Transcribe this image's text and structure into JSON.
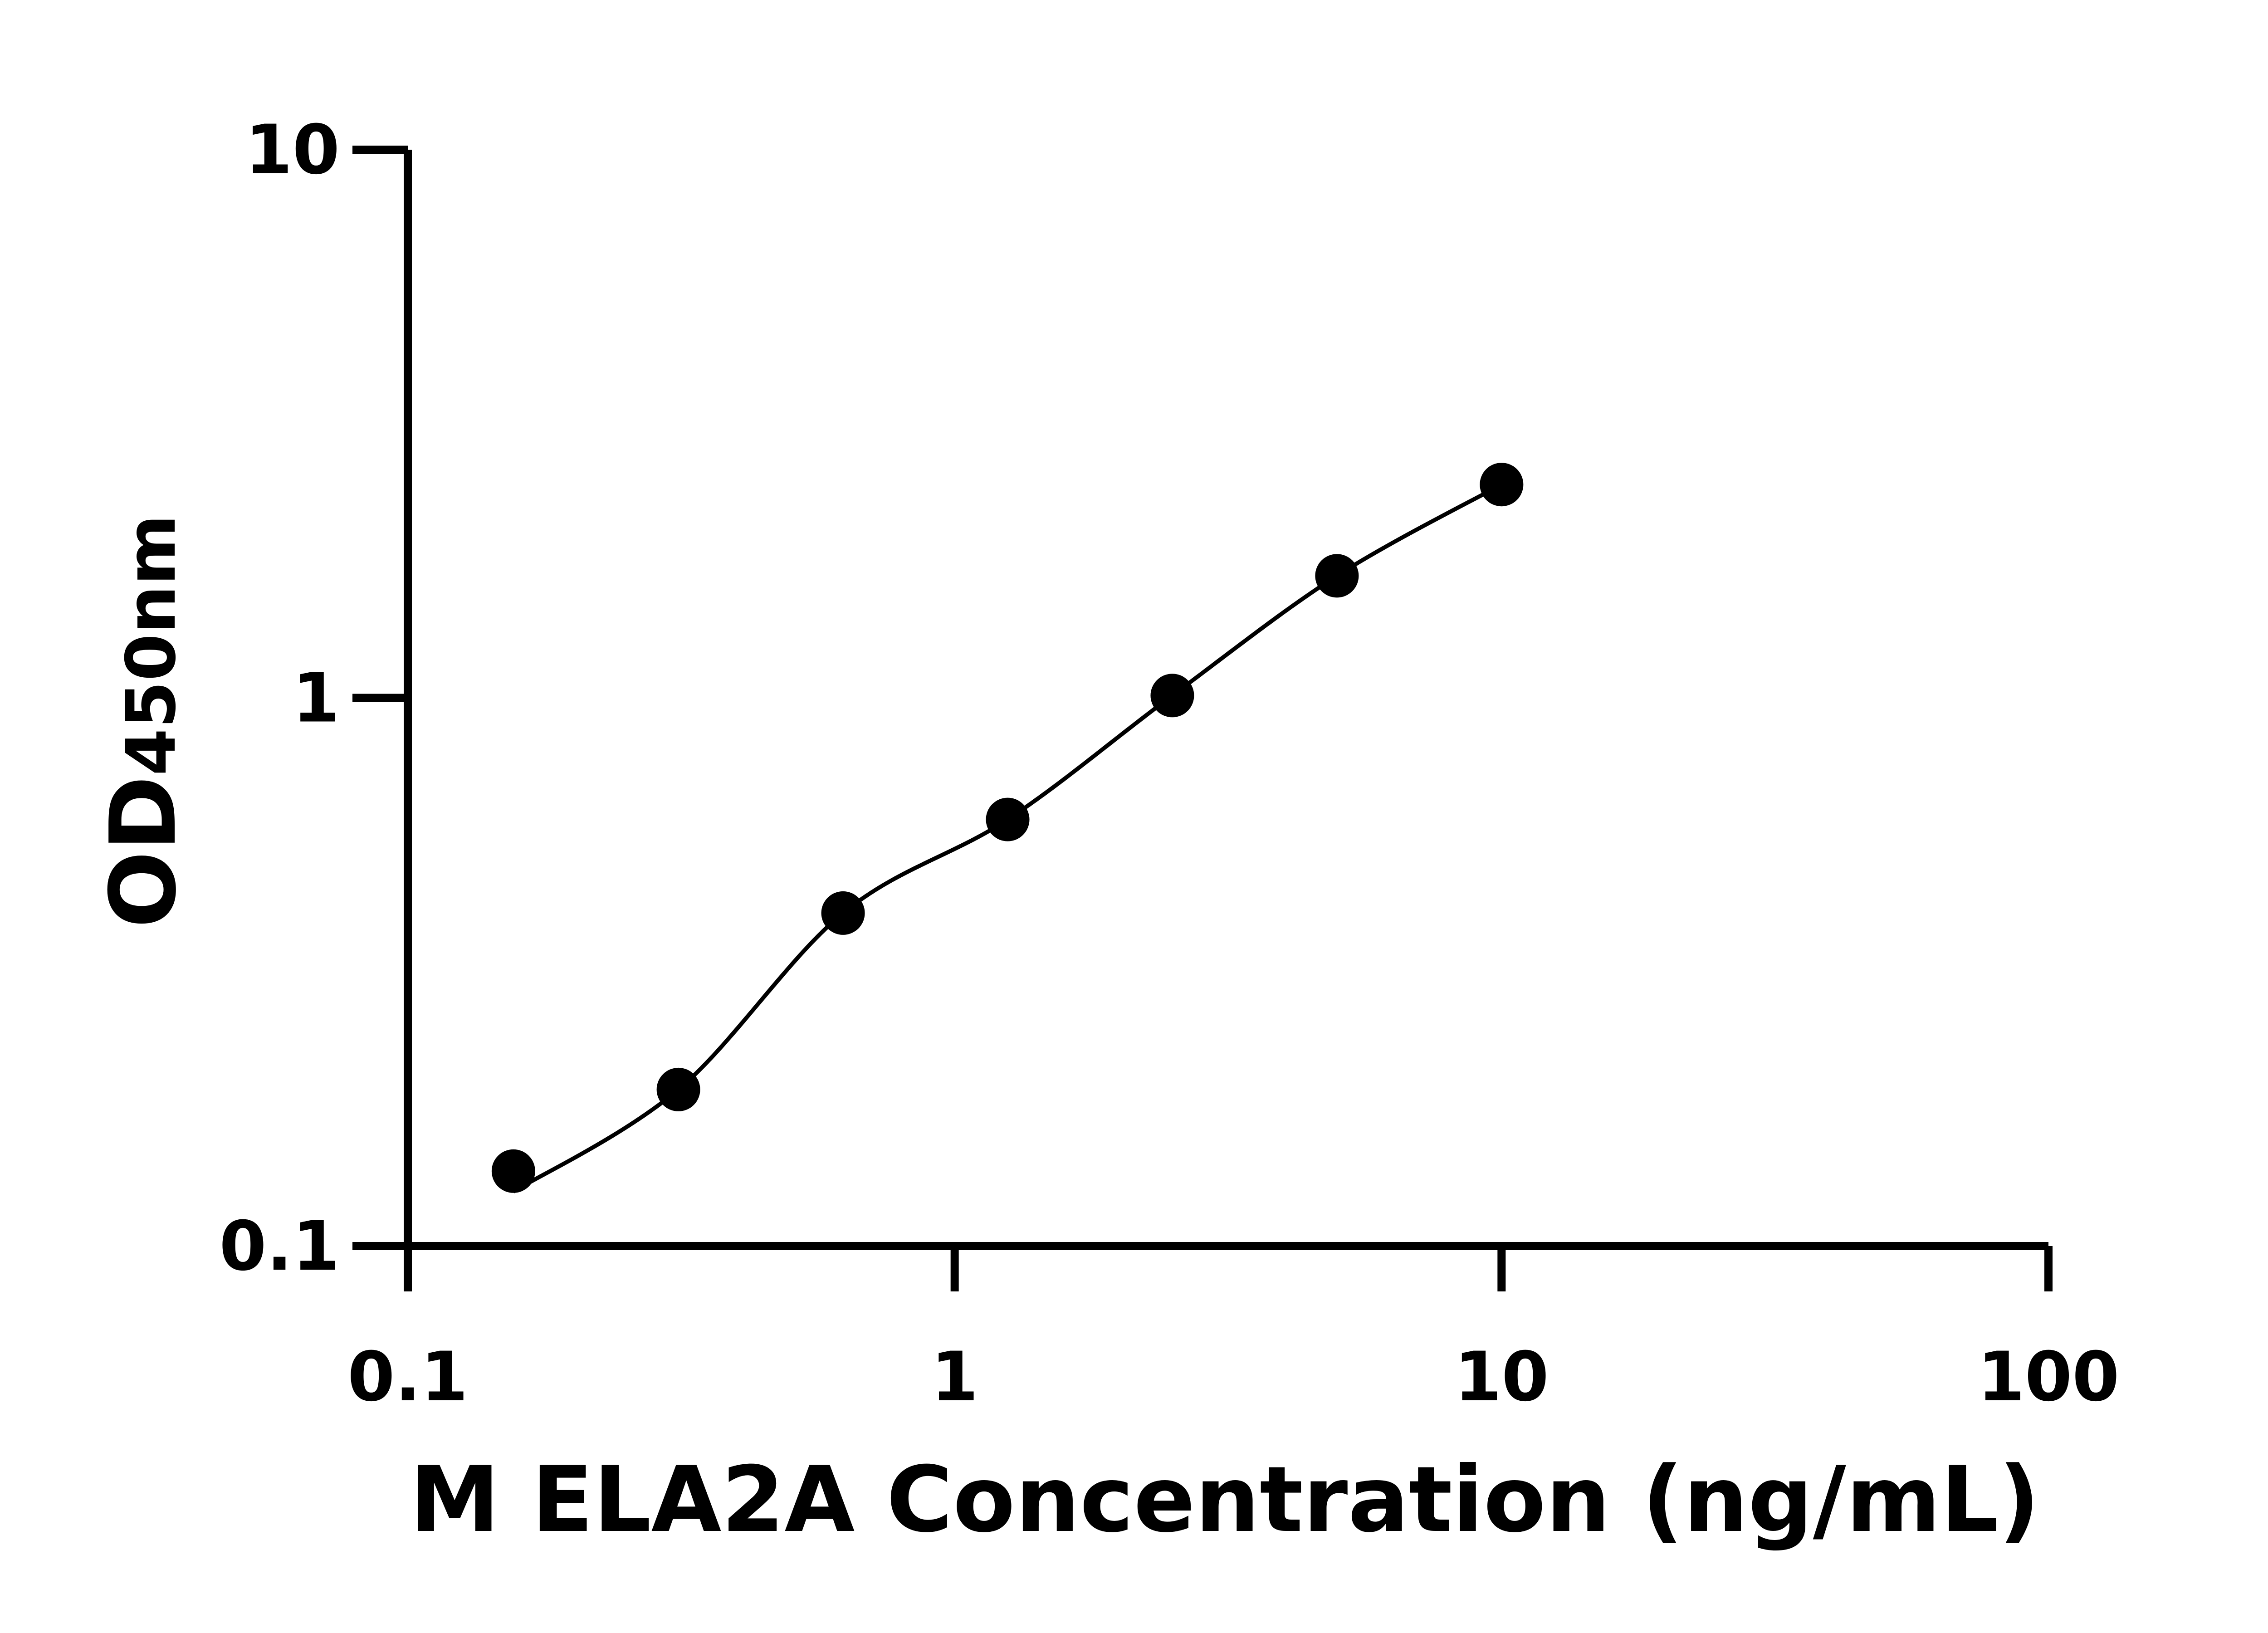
{
  "chart_data": {
    "type": "scatter",
    "title": "",
    "xlabel": "M ELA2A Concentration (ng/mL)",
    "ylabel_main": "OD",
    "ylabel_sub": "450nm",
    "x_scale": "log",
    "y_scale": "log",
    "xlim": [
      0.1,
      100
    ],
    "ylim": [
      0.1,
      10
    ],
    "x_ticks": [
      "0.1",
      "1",
      "10",
      "100"
    ],
    "y_ticks": [
      "0.1",
      "1",
      "10"
    ],
    "grid": false,
    "legend": "none",
    "has_fit_curve": true,
    "colors": {
      "points": "#000000",
      "curve": "#000000",
      "axes": "#000000"
    },
    "points": [
      {
        "x": 0.156,
        "y": 0.137
      },
      {
        "x": 0.3125,
        "y": 0.193
      },
      {
        "x": 0.625,
        "y": 0.405
      },
      {
        "x": 1.25,
        "y": 0.6
      },
      {
        "x": 2.5,
        "y": 1.01
      },
      {
        "x": 5,
        "y": 1.67
      },
      {
        "x": 10,
        "y": 2.45
      }
    ]
  }
}
